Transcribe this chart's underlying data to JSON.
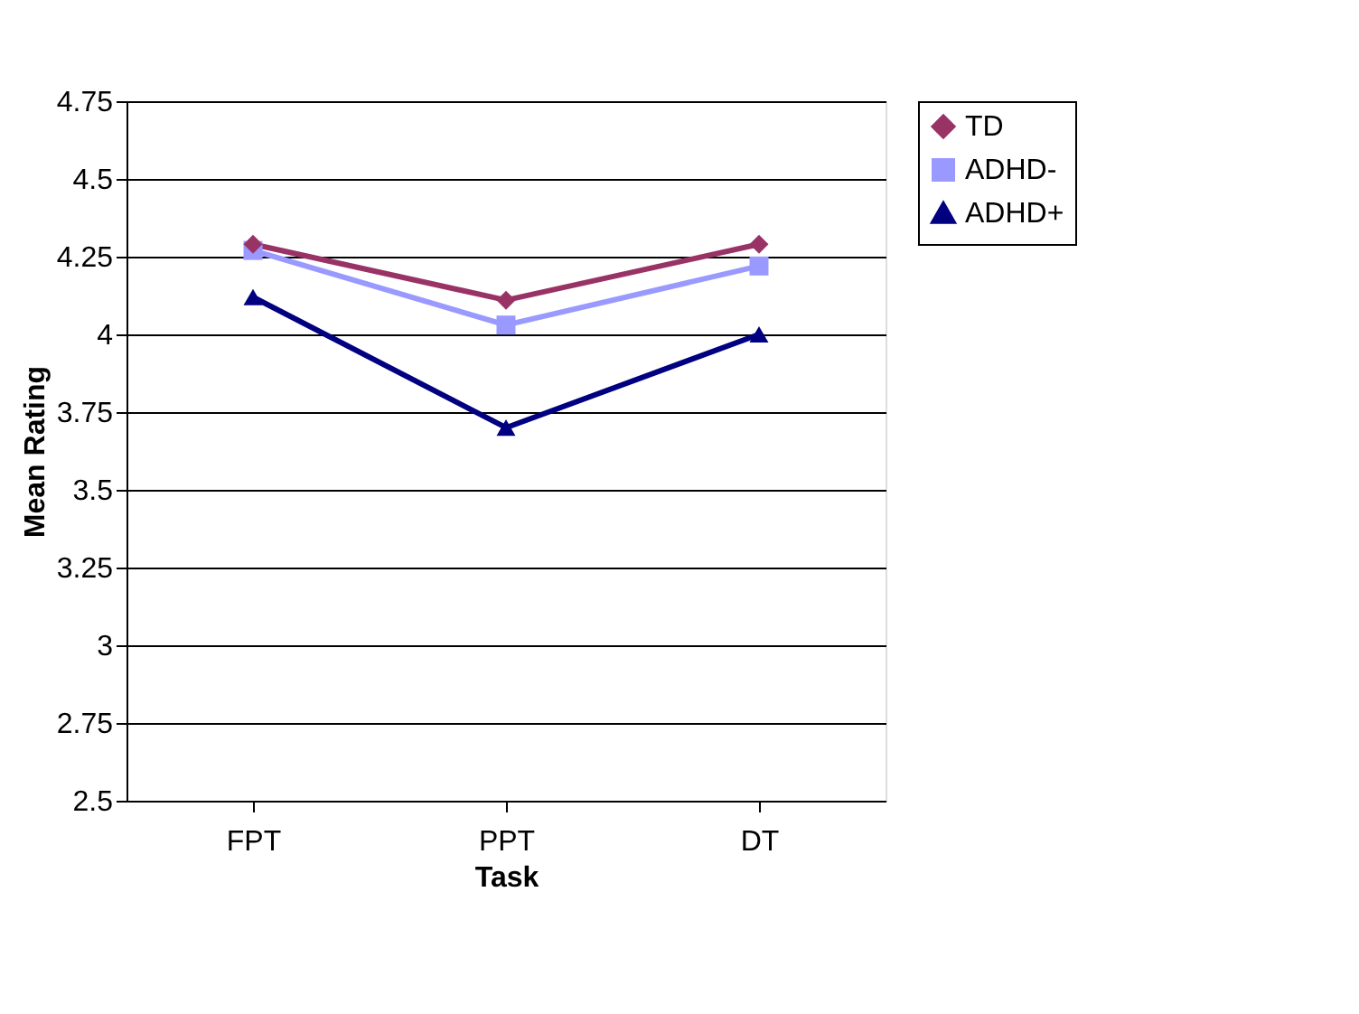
{
  "chart_data": {
    "type": "line",
    "xlabel": "Task",
    "ylabel": "Mean Rating",
    "categories": [
      "FPT",
      "PPT",
      "DT"
    ],
    "series": [
      {
        "name": "TD",
        "color": "#993366",
        "marker": "diamond",
        "values": [
          4.29,
          4.11,
          4.29
        ]
      },
      {
        "name": "ADHD-",
        "color": "#9999ff",
        "marker": "square",
        "values": [
          4.27,
          4.03,
          4.22
        ]
      },
      {
        "name": "ADHD+",
        "color": "#000080",
        "marker": "triangle",
        "values": [
          4.12,
          3.7,
          4.0
        ]
      }
    ],
    "ylim": [
      2.5,
      4.75
    ],
    "yticks": [
      2.5,
      2.75,
      3,
      3.25,
      3.5,
      3.75,
      4,
      4.25,
      4.5,
      4.75
    ],
    "grid": "y",
    "legend": "right",
    "line_style": "solid"
  }
}
